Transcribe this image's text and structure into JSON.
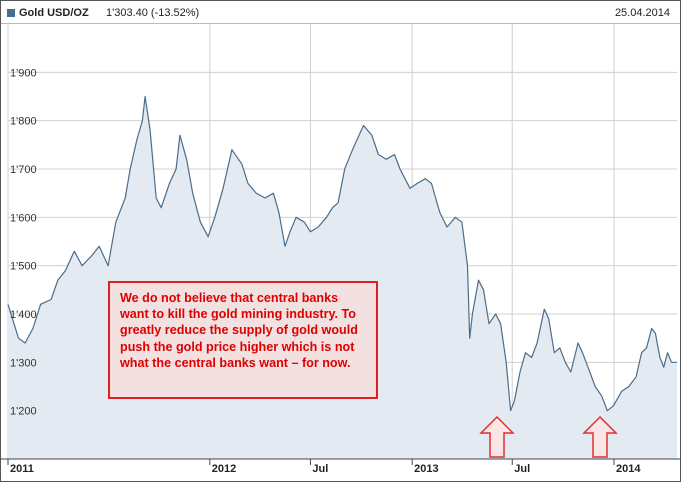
{
  "header": {
    "legend_name": "Gold USD/OZ",
    "legend_value": "1'303.40 (-13.52%)",
    "date": "25.04.2014"
  },
  "annotation": {
    "text": "We do not believe that central banks want to kill the gold mining industry. To greatly reduce the supply of gold would push the gold price higher which is not what the central banks want – for now."
  },
  "colors": {
    "line": "#4a6d8c",
    "area": "#e3eaf1",
    "grid": "#d0d0d0",
    "arrow_fill": "#fbe6e6",
    "arrow_stroke": "#e03030",
    "annotation_text": "#e00000"
  },
  "chart_data": {
    "type": "area",
    "x_unit": "date",
    "y_ticks": [
      1200,
      1300,
      1400,
      1500,
      1600,
      1700,
      1800,
      1900
    ],
    "y_tick_labels": [
      "1'200",
      "1'300",
      "1'400",
      "1'500",
      "1'600",
      "1'700",
      "1'800",
      "1'900"
    ],
    "ylim": [
      1100,
      2000
    ],
    "xlim": [
      "2011-01-01",
      "2014-04-25"
    ],
    "x_ticks": [
      {
        "date": "2011-01-01",
        "label": "2011",
        "bold": true
      },
      {
        "date": "2012-01-01",
        "label": "2012",
        "bold": true
      },
      {
        "date": "2012-07-01",
        "label": "Jul",
        "bold": true
      },
      {
        "date": "2013-01-01",
        "label": "2013",
        "bold": true
      },
      {
        "date": "2013-07-01",
        "label": "Jul",
        "bold": true
      },
      {
        "date": "2014-01-01",
        "label": "2014",
        "bold": true
      }
    ],
    "grid": true,
    "series": [
      {
        "x": [
          "2011-01-01",
          "2011-01-20",
          "2011-02-01",
          "2011-02-15",
          "2011-03-01",
          "2011-03-20",
          "2011-04-01",
          "2011-04-15",
          "2011-05-01",
          "2011-05-15",
          "2011-06-01",
          "2011-06-15",
          "2011-07-01",
          "2011-07-15",
          "2011-08-01",
          "2011-08-10",
          "2011-08-22",
          "2011-09-01",
          "2011-09-06",
          "2011-09-15",
          "2011-09-26",
          "2011-10-05",
          "2011-10-20",
          "2011-11-01",
          "2011-11-08",
          "2011-11-20",
          "2011-12-01",
          "2011-12-15",
          "2011-12-29",
          "2012-01-10",
          "2012-01-25",
          "2012-02-10",
          "2012-02-28",
          "2012-03-10",
          "2012-03-25",
          "2012-04-10",
          "2012-04-25",
          "2012-05-05",
          "2012-05-16",
          "2012-05-25",
          "2012-06-05",
          "2012-06-20",
          "2012-07-01",
          "2012-07-15",
          "2012-07-30",
          "2012-08-10",
          "2012-08-20",
          "2012-09-01",
          "2012-09-15",
          "2012-10-01",
          "2012-10-05",
          "2012-10-20",
          "2012-11-01",
          "2012-11-15",
          "2012-11-30",
          "2012-12-10",
          "2012-12-28",
          "2013-01-10",
          "2013-01-25",
          "2013-02-05",
          "2013-02-20",
          "2013-03-05",
          "2013-03-20",
          "2013-04-01",
          "2013-04-11",
          "2013-04-15",
          "2013-04-20",
          "2013-05-01",
          "2013-05-10",
          "2013-05-20",
          "2013-06-01",
          "2013-06-10",
          "2013-06-20",
          "2013-06-28",
          "2013-07-05",
          "2013-07-15",
          "2013-07-25",
          "2013-08-05",
          "2013-08-15",
          "2013-08-28",
          "2013-09-05",
          "2013-09-15",
          "2013-09-25",
          "2013-10-05",
          "2013-10-15",
          "2013-10-28",
          "2013-11-05",
          "2013-11-15",
          "2013-11-28",
          "2013-12-10",
          "2013-12-20",
          "2013-12-31",
          "2014-01-15",
          "2014-01-28",
          "2014-02-10",
          "2014-02-20",
          "2014-03-01",
          "2014-03-10",
          "2014-03-17",
          "2014-03-25",
          "2014-04-01",
          "2014-04-08",
          "2014-04-15",
          "2014-04-25"
        ],
        "y": [
          1420,
          1350,
          1340,
          1370,
          1420,
          1430,
          1470,
          1490,
          1530,
          1500,
          1520,
          1540,
          1500,
          1590,
          1640,
          1700,
          1760,
          1800,
          1850,
          1780,
          1640,
          1620,
          1670,
          1700,
          1770,
          1720,
          1650,
          1590,
          1560,
          1600,
          1660,
          1740,
          1710,
          1670,
          1650,
          1640,
          1650,
          1610,
          1540,
          1570,
          1600,
          1590,
          1570,
          1580,
          1600,
          1620,
          1630,
          1700,
          1740,
          1780,
          1790,
          1770,
          1730,
          1720,
          1730,
          1700,
          1660,
          1670,
          1680,
          1670,
          1610,
          1580,
          1600,
          1590,
          1500,
          1350,
          1400,
          1470,
          1450,
          1380,
          1400,
          1380,
          1300,
          1200,
          1220,
          1280,
          1320,
          1310,
          1340,
          1410,
          1390,
          1320,
          1330,
          1300,
          1280,
          1340,
          1320,
          1290,
          1250,
          1230,
          1200,
          1210,
          1240,
          1250,
          1270,
          1320,
          1330,
          1370,
          1360,
          1310,
          1290,
          1320,
          1300,
          1300
        ]
      }
    ]
  }
}
